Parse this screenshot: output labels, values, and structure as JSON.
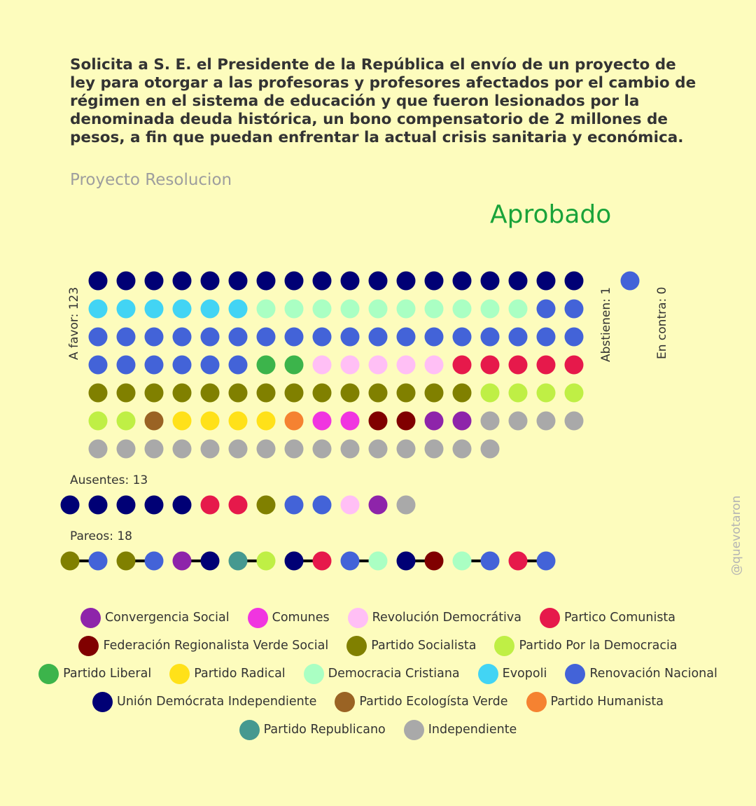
{
  "header": {
    "title": "Solicita a S. E. el Presidente de la República el envío de un proyecto de ley para otorgar a las profesoras y profesores afectados por el cambio de régimen en el sistema de educación y que fueron lesionados por la denominada deuda histórica, un bono compensatorio de 2 millones de pesos, a fin que puedan enfrentar la actual crisis sanitaria y económica.",
    "subtitle": "Proyecto Resolucion",
    "result": "Aprobado",
    "result_color": "#1aa33a"
  },
  "labels": {
    "a_favor": "A favor: 123",
    "abstienen": "Abstienen: 1",
    "en_contra": "En contra: 0",
    "ausentes": "Ausentes: 13",
    "pareos": "Pareos: 18",
    "watermark": "@quevotaron"
  },
  "chart_data": {
    "type": "dot-matrix",
    "parties": [
      {
        "key": "CS",
        "name": "Convergencia Social",
        "color": "#8e24aa"
      },
      {
        "key": "COM",
        "name": "Comunes",
        "color": "#f035e0"
      },
      {
        "key": "RD",
        "name": "Revolución Democrátiva",
        "color": "#ffbff5"
      },
      {
        "key": "PC",
        "name": "Partico Comunista",
        "color": "#e6194b"
      },
      {
        "key": "FRVS",
        "name": "Federación Regionalista Verde Social",
        "color": "#800000"
      },
      {
        "key": "PS",
        "name": "Partido Socialista",
        "color": "#808000"
      },
      {
        "key": "PPD",
        "name": "Partido Por la Democracia",
        "color": "#bfef45"
      },
      {
        "key": "PL",
        "name": "Partido Liberal",
        "color": "#3cb44b"
      },
      {
        "key": "PR",
        "name": "Partido Radical",
        "color": "#ffe119"
      },
      {
        "key": "DC",
        "name": "Democracia Cristiana",
        "color": "#aaffc3"
      },
      {
        "key": "EVO",
        "name": "Evopoli",
        "color": "#42d4f4"
      },
      {
        "key": "RN",
        "name": "Renovación Nacional",
        "color": "#4363d8"
      },
      {
        "key": "UDI",
        "name": "Unión Demócrata Independiente",
        "color": "#000075"
      },
      {
        "key": "PEV",
        "name": "Partido Ecologísta Verde",
        "color": "#9a6324"
      },
      {
        "key": "PH",
        "name": "Partido Humanista",
        "color": "#f58231"
      },
      {
        "key": "REP",
        "name": "Partido Republicano",
        "color": "#469990"
      },
      {
        "key": "IND",
        "name": "Independiente",
        "color": "#a9a9a9"
      }
    ],
    "legend_rows": [
      [
        "CS",
        "COM",
        "RD",
        "PC"
      ],
      [
        "FRVS",
        "PS",
        "PPD"
      ],
      [
        "PL",
        "PR",
        "DC",
        "EVO",
        "RN"
      ],
      [
        "UDI",
        "PEV",
        "PH"
      ],
      [
        "REP",
        "IND"
      ]
    ],
    "a_favor": {
      "count": 123,
      "rows": [
        [
          "UDI",
          "UDI",
          "UDI",
          "UDI",
          "UDI",
          "UDI",
          "UDI",
          "UDI",
          "UDI",
          "UDI",
          "UDI",
          "UDI",
          "UDI",
          "UDI",
          "UDI",
          "UDI",
          "UDI",
          "UDI"
        ],
        [
          "EVO",
          "EVO",
          "EVO",
          "EVO",
          "EVO",
          "EVO",
          "DC",
          "DC",
          "DC",
          "DC",
          "DC",
          "DC",
          "DC",
          "DC",
          "DC",
          "DC",
          "RN",
          "RN"
        ],
        [
          "RN",
          "RN",
          "RN",
          "RN",
          "RN",
          "RN",
          "RN",
          "RN",
          "RN",
          "RN",
          "RN",
          "RN",
          "RN",
          "RN",
          "RN",
          "RN",
          "RN",
          "RN"
        ],
        [
          "RN",
          "RN",
          "RN",
          "RN",
          "RN",
          "RN",
          "PL",
          "PL",
          "RD",
          "RD",
          "RD",
          "RD",
          "RD",
          "PC",
          "PC",
          "PC",
          "PC",
          "PC"
        ],
        [
          "PS",
          "PS",
          "PS",
          "PS",
          "PS",
          "PS",
          "PS",
          "PS",
          "PS",
          "PS",
          "PS",
          "PS",
          "PS",
          "PS",
          "PPD",
          "PPD",
          "PPD",
          "PPD"
        ],
        [
          "PPD",
          "PPD",
          "PEV",
          "PR",
          "PR",
          "PR",
          "PR",
          "PH",
          "COM",
          "COM",
          "FRVS",
          "FRVS",
          "CS",
          "CS",
          "IND",
          "IND",
          "IND",
          "IND"
        ],
        [
          "IND",
          "IND",
          "IND",
          "IND",
          "IND",
          "IND",
          "IND",
          "IND",
          "IND",
          "IND",
          "IND",
          "IND",
          "IND",
          "IND",
          "IND"
        ]
      ]
    },
    "abstienen": {
      "count": 1,
      "members": [
        "RN"
      ]
    },
    "en_contra": {
      "count": 0,
      "members": []
    },
    "ausentes": {
      "count": 13,
      "members": [
        "UDI",
        "UDI",
        "UDI",
        "UDI",
        "UDI",
        "PC",
        "PC",
        "PS",
        "RN",
        "RN",
        "RD",
        "CS",
        "IND"
      ]
    },
    "pareos": {
      "count": 18,
      "pairs": [
        [
          "PS",
          "RN"
        ],
        [
          "PS",
          "RN"
        ],
        [
          "CS",
          "UDI"
        ],
        [
          "REP",
          "PPD"
        ],
        [
          "UDI",
          "PC"
        ],
        [
          "RN",
          "DC"
        ],
        [
          "UDI",
          "FRVS"
        ],
        [
          "DC",
          "RN"
        ],
        [
          "PC",
          "RN"
        ]
      ]
    }
  }
}
